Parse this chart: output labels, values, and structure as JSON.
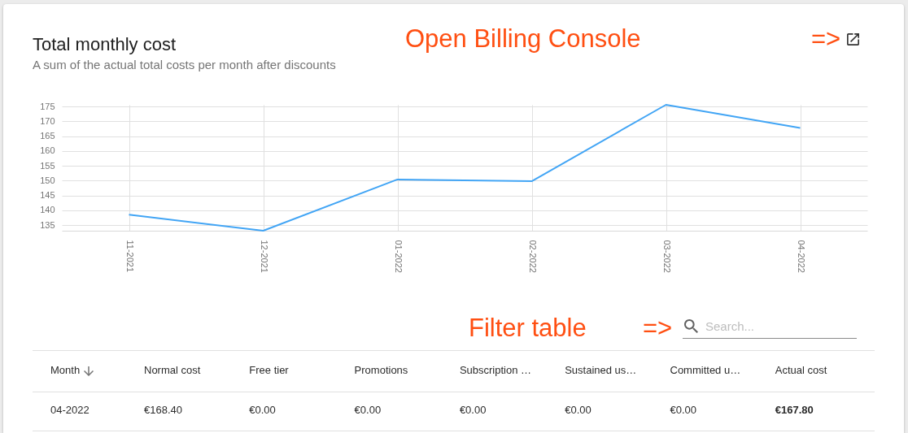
{
  "chart_data": [
    {
      "type": "line",
      "title": "Total monthly cost",
      "subtitle": "A sum of the actual total costs per month after discounts",
      "annotations": [
        "Open Billing Console",
        "=>"
      ],
      "categories": [
        "11-2021",
        "12-2021",
        "01-2022",
        "02-2022",
        "03-2022",
        "04-2022"
      ],
      "values": [
        138.5,
        133.1,
        150.4,
        149.8,
        175.6,
        167.8
      ],
      "color": "#42a5f5",
      "ylim": [
        133.1,
        175.6
      ],
      "yticks": [
        135,
        140,
        145,
        150,
        155,
        160,
        165,
        170,
        175
      ],
      "grid": true
    },
    {
      "type": "other",
      "annotations": [
        "Filter table",
        "=>",
        "Search...",
        "04-2022",
        "€168.40",
        "€0.00",
        "€0.00",
        "€0.00",
        "€0.00",
        "€0.00",
        "€167.80"
      ],
      "categories": [
        "Month",
        "Normal cost",
        "Free tier",
        "Promotions",
        "Subscription …",
        "Sustained us…",
        "Committed u…",
        "Actual cost"
      ]
    }
  ]
}
